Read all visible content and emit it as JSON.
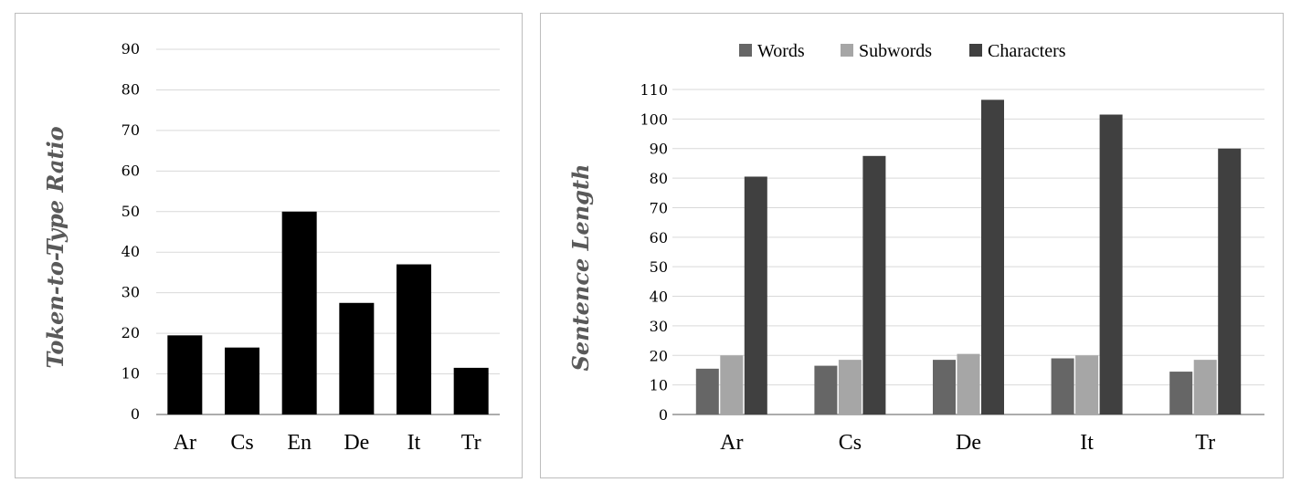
{
  "chart_data": [
    {
      "type": "bar",
      "categories": [
        "Ar",
        "Cs",
        "En",
        "De",
        "It",
        "Tr"
      ],
      "values": [
        19.5,
        16.5,
        50,
        27.5,
        37,
        11.5
      ],
      "xlabel": "",
      "ylabel": "Token-to-Type Ratio",
      "ylim": [
        0,
        90
      ],
      "yticks": [
        0,
        10,
        20,
        30,
        40,
        50,
        60,
        70,
        80,
        90
      ],
      "grid": true,
      "colors": {
        "bar": "#000000"
      }
    },
    {
      "type": "bar",
      "categories": [
        "Ar",
        "Cs",
        "De",
        "It",
        "Tr"
      ],
      "series": [
        {
          "name": "Words",
          "values": [
            15.5,
            16.5,
            18.5,
            19,
            14.5
          ],
          "color": "#666666"
        },
        {
          "name": "Subwords",
          "values": [
            20,
            18.5,
            20.5,
            20,
            18.5
          ],
          "color": "#a6a6a6"
        },
        {
          "name": "Characters",
          "values": [
            80.5,
            87.5,
            106.5,
            101.5,
            90
          ],
          "color": "#404040"
        }
      ],
      "xlabel": "",
      "ylabel": "Sentence Length",
      "ylim": [
        0,
        110
      ],
      "yticks": [
        0,
        10,
        20,
        30,
        40,
        50,
        60,
        70,
        80,
        90,
        100,
        110
      ],
      "grid": true,
      "legend_position": "top"
    }
  ]
}
